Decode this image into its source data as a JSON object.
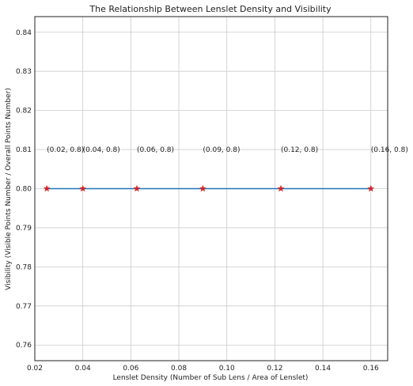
{
  "chart_data": {
    "type": "line",
    "title": "The Relationship Between Lenslet Density and Visibility",
    "xlabel": "Lenslet Density (Number of Sub Lens / Area of Lenslet)",
    "ylabel": "Visibility (Visible Points Number / Overall Points Number)",
    "xlim": [
      0.02,
      0.167
    ],
    "ylim": [
      0.756,
      0.844
    ],
    "grid": true,
    "xticks": [
      0.02,
      0.04,
      0.06,
      0.08,
      0.1,
      0.12,
      0.14,
      0.16
    ],
    "xtick_labels": [
      "0.02",
      "0.04",
      "0.06",
      "0.08",
      "0.10",
      "0.12",
      "0.14",
      "0.16"
    ],
    "yticks": [
      0.76,
      0.77,
      0.78,
      0.79,
      0.8,
      0.81,
      0.82,
      0.83,
      0.84
    ],
    "ytick_labels": [
      "0.76",
      "0.77",
      "0.78",
      "0.79",
      "0.80",
      "0.81",
      "0.82",
      "0.83",
      "0.84"
    ],
    "series": [
      {
        "x": [
          0.025,
          0.04,
          0.0625,
          0.09,
          0.1225,
          0.16
        ],
        "y": [
          0.8,
          0.8,
          0.8,
          0.8,
          0.8,
          0.8
        ],
        "line_color": "#1f77b4",
        "marker": "star",
        "marker_color": "#d62728"
      }
    ],
    "annotations": [
      {
        "text": "(0.02, 0.8)",
        "x": 0.025,
        "y": 0.81
      },
      {
        "text": "(0.04, 0.8)",
        "x": 0.04,
        "y": 0.81
      },
      {
        "text": "(0.06, 0.8)",
        "x": 0.0625,
        "y": 0.81
      },
      {
        "text": "(0.09, 0.8)",
        "x": 0.09,
        "y": 0.81
      },
      {
        "text": "(0.12, 0.8)",
        "x": 0.1225,
        "y": 0.81
      },
      {
        "text": "(0.16, 0.8)",
        "x": 0.16,
        "y": 0.81
      }
    ]
  }
}
